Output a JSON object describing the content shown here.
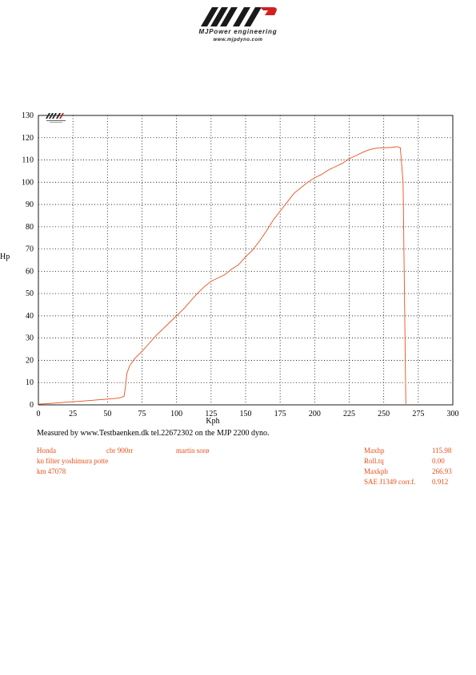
{
  "brand": {
    "name": "MJPower engineering",
    "url": "www.mjpdyno.com"
  },
  "colors": {
    "curve": "#e8501a",
    "info_text": "#e8501a",
    "grid": "#000000"
  },
  "chart_data": {
    "type": "line",
    "title": "",
    "xlabel": "Kph",
    "ylabel": "Hp",
    "xlim": [
      0,
      300
    ],
    "ylim": [
      0,
      130
    ],
    "x_ticks": [
      0,
      25,
      50,
      75,
      100,
      125,
      150,
      175,
      200,
      225,
      250,
      275,
      300
    ],
    "y_ticks": [
      0,
      10,
      20,
      30,
      40,
      50,
      60,
      70,
      80,
      90,
      100,
      110,
      120,
      130
    ],
    "grid": true,
    "legend": "none",
    "series": [
      {
        "points": [
          [
            0,
            0.3
          ],
          [
            10,
            0.7
          ],
          [
            20,
            1.2
          ],
          [
            30,
            1.6
          ],
          [
            40,
            2.1
          ],
          [
            50,
            2.6
          ],
          [
            58,
            3.0
          ],
          [
            62,
            3.8
          ],
          [
            63,
            8
          ],
          [
            64,
            14
          ],
          [
            66,
            17.5
          ],
          [
            70,
            21
          ],
          [
            75,
            24
          ],
          [
            80,
            27.5
          ],
          [
            85,
            31
          ],
          [
            90,
            34
          ],
          [
            95,
            37
          ],
          [
            100,
            40
          ],
          [
            105,
            43
          ],
          [
            110,
            46.5
          ],
          [
            115,
            50
          ],
          [
            120,
            53
          ],
          [
            125,
            55.5
          ],
          [
            130,
            57
          ],
          [
            135,
            58.5
          ],
          [
            140,
            61
          ],
          [
            145,
            63
          ],
          [
            150,
            66.5
          ],
          [
            155,
            69.5
          ],
          [
            160,
            73.5
          ],
          [
            165,
            78
          ],
          [
            170,
            83
          ],
          [
            175,
            87
          ],
          [
            180,
            91
          ],
          [
            185,
            95
          ],
          [
            190,
            97.5
          ],
          [
            195,
            100
          ],
          [
            200,
            102
          ],
          [
            205,
            103.5
          ],
          [
            210,
            105.5
          ],
          [
            215,
            107
          ],
          [
            220,
            108.5
          ],
          [
            225,
            110.5
          ],
          [
            230,
            112
          ],
          [
            235,
            113.5
          ],
          [
            240,
            114.7
          ],
          [
            245,
            115.3
          ],
          [
            250,
            115.5
          ],
          [
            255,
            115.6
          ],
          [
            260,
            115.98
          ],
          [
            262,
            115.5
          ],
          [
            264,
            100
          ],
          [
            265,
            50
          ],
          [
            266,
            0.5
          ]
        ]
      }
    ]
  },
  "footer": {
    "measured": "Measured by www.Testbaenken.dk tel.22672302 on the MJP 2200 dyno.",
    "make": "Honda",
    "model": "cbr 900rr",
    "owner": "martin sorø",
    "mods": "kn filter  yoshimura potte",
    "km": "km 47078",
    "stats": [
      {
        "label": "Maxhp",
        "value": "115.98"
      },
      {
        "label": "Roll.tq",
        "value": "0.00"
      },
      {
        "label": "Maxkph",
        "value": "266.93"
      },
      {
        "label": "SAE J1349 corr.f.",
        "value": "0.912"
      }
    ]
  }
}
